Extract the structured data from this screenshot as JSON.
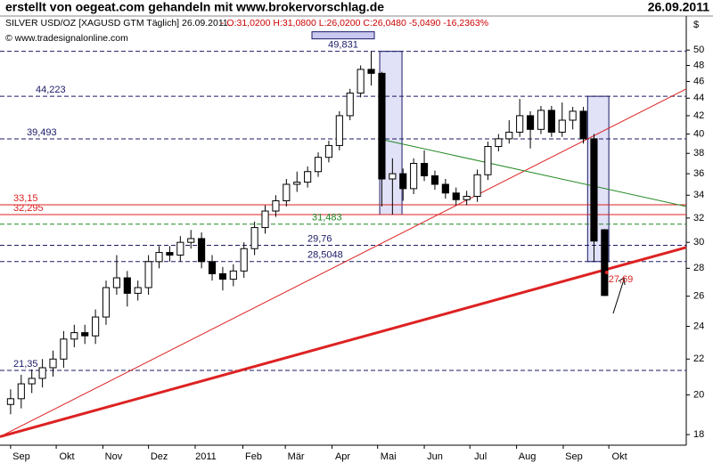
{
  "chart_data": {
    "type": "candlestick",
    "header": "erstellt von oegeat.com gehandeln mit www.brokervorschlag.de",
    "date": "26.09.2011",
    "instrument": "SILVER USD/OZ [XAGUSD GTM  Täglich] 26.09.2011",
    "quote": "- O:31,0200 H:31,0800 L:26,0200 C:26,0480 -5,0490 -16,2363%",
    "copyright": "© www.tradesignalonline.com",
    "y_label": "$",
    "log_scale": true,
    "up_color": "#ffffff",
    "down_color": "#000000",
    "x": [
      0,
      1,
      2,
      3,
      4,
      5,
      6,
      7,
      8,
      9,
      10,
      11,
      12,
      13,
      14,
      15,
      16,
      17,
      18,
      19,
      20,
      21,
      22,
      23,
      24,
      25,
      26,
      27,
      28,
      29,
      30,
      31,
      32,
      33,
      34,
      35,
      36,
      37,
      38,
      39,
      40,
      41,
      42,
      43,
      44,
      45,
      46,
      47,
      48,
      49,
      50,
      51,
      52,
      53,
      54,
      55,
      56
    ],
    "open": [
      19.5,
      19.8,
      20.6,
      20.9,
      21.5,
      22.0,
      23.2,
      23.6,
      23.4,
      24.6,
      26.6,
      27.3,
      26.2,
      26.6,
      28.5,
      29.2,
      29.0,
      30.0,
      30.3,
      28.5,
      27.6,
      27.2,
      27.8,
      29.5,
      31.2,
      32.6,
      33.5,
      35.0,
      35.2,
      36.2,
      37.6,
      38.8,
      42.0,
      44.6,
      47.5,
      47.0,
      35.5,
      36.0,
      34.6,
      37.0,
      35.8,
      35.0,
      34.2,
      33.6,
      33.9,
      35.9,
      38.7,
      39.5,
      40.2,
      42.0,
      40.5,
      42.6,
      40.2,
      41.5,
      42.5,
      39.5,
      31.02
    ],
    "high": [
      20.3,
      21.1,
      21.4,
      22.0,
      22.5,
      23.7,
      24.1,
      24.1,
      25.1,
      27.1,
      29.0,
      27.8,
      27.1,
      29.0,
      29.7,
      29.7,
      30.5,
      31.0,
      30.8,
      29.0,
      28.1,
      28.3,
      30.0,
      31.7,
      33.1,
      34.0,
      35.5,
      36.2,
      36.7,
      38.1,
      39.3,
      42.5,
      45.1,
      48.0,
      49.831,
      47.2,
      37.5,
      36.5,
      37.5,
      38.3,
      36.3,
      35.5,
      34.7,
      34.4,
      36.4,
      39.2,
      40.0,
      41.5,
      43.9,
      42.5,
      43.1,
      43.1,
      43.5,
      43.0,
      43.0,
      40.0,
      31.08
    ],
    "low": [
      19.0,
      19.3,
      20.1,
      20.4,
      21.0,
      21.5,
      22.7,
      22.9,
      22.9,
      24.1,
      26.1,
      25.3,
      25.7,
      26.1,
      28.0,
      28.5,
      28.5,
      29.5,
      28.0,
      27.1,
      26.4,
      26.7,
      27.3,
      29.0,
      30.7,
      32.1,
      33.0,
      34.3,
      34.7,
      35.7,
      37.1,
      38.3,
      41.5,
      44.1,
      45.5,
      33.0,
      32.295,
      33.5,
      34.1,
      35.3,
      34.5,
      33.7,
      33.1,
      33.1,
      33.4,
      35.4,
      38.2,
      39.0,
      39.7,
      38.5,
      40.0,
      39.7,
      39.7,
      40.5,
      39.0,
      28.5048,
      26.02
    ],
    "close": [
      19.8,
      20.6,
      20.9,
      21.5,
      22.0,
      23.2,
      23.6,
      23.4,
      24.6,
      26.6,
      27.3,
      26.2,
      26.6,
      28.5,
      29.2,
      29.0,
      30.0,
      30.3,
      28.5,
      27.6,
      27.2,
      27.8,
      29.5,
      31.2,
      32.6,
      33.5,
      35.0,
      35.2,
      36.2,
      37.6,
      38.8,
      42.0,
      44.6,
      47.5,
      47.0,
      35.5,
      36.0,
      34.6,
      37.0,
      35.8,
      35.0,
      34.2,
      33.6,
      33.9,
      35.9,
      38.7,
      39.5,
      40.2,
      42.0,
      40.5,
      42.6,
      40.2,
      41.5,
      42.5,
      39.5,
      30.1,
      26.048
    ],
    "xlim": [
      -1,
      63.7
    ],
    "xticks": [
      {
        "value": 0,
        "label": "Sep"
      },
      {
        "value": 4.3,
        "label": "Okt"
      },
      {
        "value": 8.7,
        "label": "Nov"
      },
      {
        "value": 13,
        "label": "Dez"
      },
      {
        "value": 17.4,
        "label": "2011"
      },
      {
        "value": 21.9,
        "label": "Feb"
      },
      {
        "value": 25.9,
        "label": "Mär"
      },
      {
        "value": 30.3,
        "label": "Apr"
      },
      {
        "value": 34.6,
        "label": "Mai"
      },
      {
        "value": 39,
        "label": "Jun"
      },
      {
        "value": 43.3,
        "label": "Jul"
      },
      {
        "value": 47.7,
        "label": "Aug"
      },
      {
        "value": 52.1,
        "label": "Sep"
      },
      {
        "value": 56.4,
        "label": "Okt"
      }
    ],
    "ylim": [
      17.5,
      52.7
    ],
    "yticks": [
      18,
      20,
      22,
      24,
      26,
      28,
      30,
      32,
      34,
      36,
      38,
      40,
      42,
      44,
      46,
      48,
      50
    ],
    "levels": [
      {
        "value": 49.831,
        "label": "49,831",
        "color": "#1a1a66",
        "dashed": true
      },
      {
        "value": 44.223,
        "label": "44,223",
        "color": "#1a1a66",
        "dashed": true
      },
      {
        "value": 39.493,
        "label": "39,493",
        "color": "#1a1a66",
        "dashed": true
      },
      {
        "value": 33.15,
        "label": "33,15",
        "color": "#dd2222",
        "dashed": false
      },
      {
        "value": 32.295,
        "label": "32,295",
        "color": "#dd2222",
        "dashed": false
      },
      {
        "value": 31.483,
        "label": "31,483",
        "color": "#228822",
        "dashed": true
      },
      {
        "value": 29.76,
        "label": "29,76",
        "color": "#1a1a66",
        "dashed": true
      },
      {
        "value": 28.5048,
        "label": "28,5048",
        "color": "#1a1a66",
        "dashed": true
      },
      {
        "value": 21.35,
        "label": "21,35",
        "color": "#1a1a66",
        "dashed": true
      }
    ],
    "trendlines": [
      {
        "x": [
          -1,
          63.7
        ],
        "y": [
          17.9,
          45.1
        ],
        "color": "#dd2222",
        "width": 1
      },
      {
        "x": [
          -1,
          63.7
        ],
        "y": [
          17.9,
          29.6
        ],
        "color": "#dd2222",
        "width": 3
      },
      {
        "x": [
          34.7,
          63.7
        ],
        "y": [
          39.5,
          33.0
        ],
        "color": "#228822",
        "width": 1
      }
    ],
    "boxes": [
      {
        "x": [
          34.8,
          36.9
        ],
        "y": [
          32.295,
          49.831
        ]
      },
      {
        "x": [
          54.4,
          56.4
        ],
        "y": [
          28.5048,
          44.223
        ]
      }
    ],
    "annotation": {
      "x": 56.2,
      "value": 27.69,
      "label": "27,69",
      "color": "#dd2222"
    }
  }
}
